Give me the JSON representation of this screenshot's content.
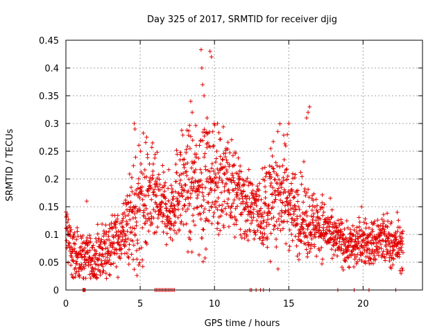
{
  "chart_data": {
    "type": "scatter",
    "title": "Day 325 of 2017, SRMTID for receiver djig",
    "xlabel": "GPS time / hours",
    "ylabel": "SRMTID / TECUs",
    "xlim": [
      0,
      24
    ],
    "ylim": [
      0,
      0.45
    ],
    "xticks": [
      0,
      5,
      10,
      15,
      20
    ],
    "xtick_labels": [
      "0",
      "5",
      "10",
      "15",
      "20"
    ],
    "yticks": [
      0,
      0.05,
      0.1,
      0.15,
      0.2,
      0.25,
      0.3,
      0.35,
      0.4,
      0.45
    ],
    "ytick_labels": [
      "0",
      "0.05",
      "0.1",
      "0.15",
      "0.2",
      "0.25",
      "0.3",
      "0.35",
      "0.4",
      "0.45"
    ],
    "grid": true,
    "legend": "none",
    "marker": "+",
    "color": "#e00000",
    "envelope": {
      "description": "approximate median level and spread of the point cloud by hour",
      "hours": [
        0.0,
        0.5,
        1.0,
        1.5,
        2.0,
        2.5,
        3.0,
        3.5,
        4.0,
        4.5,
        5.0,
        5.5,
        6.0,
        6.5,
        7.0,
        7.5,
        8.0,
        8.5,
        9.0,
        9.5,
        10.0,
        10.5,
        11.0,
        11.5,
        12.0,
        12.5,
        13.0,
        13.5,
        14.0,
        14.5,
        15.0,
        15.5,
        16.0,
        16.5,
        17.0,
        17.5,
        18.0,
        18.5,
        19.0,
        19.5,
        20.0,
        20.5,
        21.0,
        21.5,
        22.0,
        22.5
      ],
      "median": [
        0.11,
        0.06,
        0.06,
        0.06,
        0.05,
        0.07,
        0.08,
        0.09,
        0.11,
        0.13,
        0.15,
        0.17,
        0.16,
        0.15,
        0.14,
        0.18,
        0.19,
        0.18,
        0.2,
        0.21,
        0.2,
        0.2,
        0.19,
        0.17,
        0.16,
        0.15,
        0.14,
        0.15,
        0.17,
        0.18,
        0.16,
        0.14,
        0.13,
        0.12,
        0.12,
        0.11,
        0.09,
        0.09,
        0.08,
        0.08,
        0.09,
        0.08,
        0.09,
        0.09,
        0.08,
        0.08
      ],
      "spread": [
        0.03,
        0.025,
        0.02,
        0.02,
        0.02,
        0.025,
        0.025,
        0.03,
        0.03,
        0.05,
        0.06,
        0.05,
        0.04,
        0.03,
        0.03,
        0.04,
        0.05,
        0.05,
        0.06,
        0.06,
        0.05,
        0.05,
        0.04,
        0.04,
        0.04,
        0.03,
        0.03,
        0.04,
        0.05,
        0.05,
        0.04,
        0.035,
        0.035,
        0.03,
        0.03,
        0.025,
        0.02,
        0.02,
        0.02,
        0.02,
        0.02,
        0.02,
        0.025,
        0.025,
        0.02,
        0.02
      ],
      "data_start": 0.0,
      "data_end": 22.7
    },
    "highlight_points": [
      {
        "x": 4.6,
        "y": 0.3
      },
      {
        "x": 4.65,
        "y": 0.29
      },
      {
        "x": 8.4,
        "y": 0.34
      },
      {
        "x": 8.5,
        "y": 0.32
      },
      {
        "x": 9.1,
        "y": 0.433
      },
      {
        "x": 9.15,
        "y": 0.4
      },
      {
        "x": 9.2,
        "y": 0.37
      },
      {
        "x": 9.3,
        "y": 0.35
      },
      {
        "x": 9.7,
        "y": 0.43
      },
      {
        "x": 9.8,
        "y": 0.42
      },
      {
        "x": 9.5,
        "y": 0.31
      },
      {
        "x": 10.2,
        "y": 0.3
      },
      {
        "x": 15.0,
        "y": 0.3
      },
      {
        "x": 14.9,
        "y": 0.28
      },
      {
        "x": 16.3,
        "y": 0.32
      },
      {
        "x": 16.4,
        "y": 0.33
      },
      {
        "x": 16.2,
        "y": 0.31
      },
      {
        "x": 1.4,
        "y": 0.16
      },
      {
        "x": 4.9,
        "y": 0.045
      },
      {
        "x": 7.1,
        "y": 0.12
      },
      {
        "x": 22.3,
        "y": 0.14
      },
      {
        "x": 19.9,
        "y": 0.15
      }
    ],
    "zero_points_x": [
      1.15,
      1.2,
      1.25,
      1.3,
      6.0,
      6.1,
      6.2,
      6.3,
      6.4,
      6.5,
      6.6,
      6.7,
      6.8,
      6.9,
      7.0,
      7.1,
      7.2,
      7.3,
      12.4,
      12.5,
      12.8,
      13.1,
      13.3,
      13.7,
      18.3,
      19.4,
      20.4,
      22.2
    ]
  }
}
